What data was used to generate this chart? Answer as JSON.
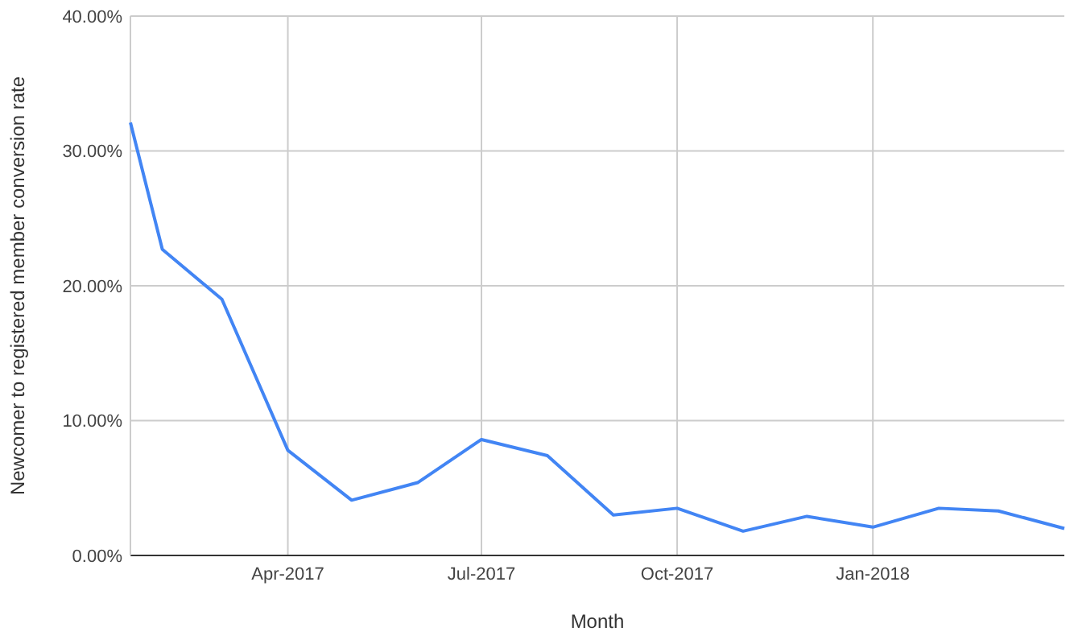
{
  "chart_data": {
    "type": "line",
    "xlabel": "Month",
    "ylabel": "Newcomer to registered member conversion rate",
    "x": [
      "2017-01-17",
      "2017-02-01",
      "2017-03-01",
      "2017-04-01",
      "2017-05-01",
      "2017-06-01",
      "2017-07-01",
      "2017-08-01",
      "2017-09-01",
      "2017-10-01",
      "2017-11-01",
      "2017-12-01",
      "2018-01-01",
      "2018-02-01",
      "2018-03-01",
      "2018-04-01"
    ],
    "series": [
      {
        "color": "#4285f4",
        "values": [
          32.1,
          22.7,
          19.0,
          7.8,
          4.1,
          5.4,
          8.6,
          7.4,
          3.0,
          3.5,
          1.8,
          2.9,
          2.1,
          3.5,
          3.3,
          2.0
        ]
      }
    ],
    "xlim": [
      "2017-01-17",
      "2018-04-01"
    ],
    "xticks": [
      {
        "value": "2017-04-01",
        "label": "Apr-2017"
      },
      {
        "value": "2017-07-01",
        "label": "Jul-2017"
      },
      {
        "value": "2017-10-01",
        "label": "Oct-2017"
      },
      {
        "value": "2018-01-01",
        "label": "Jan-2018"
      }
    ],
    "ylim": [
      0,
      40
    ],
    "yticks": [
      {
        "value": 0,
        "label": "0.00%"
      },
      {
        "value": 10,
        "label": "10.00%"
      },
      {
        "value": 20,
        "label": "20.00%"
      },
      {
        "value": 30,
        "label": "30.00%"
      },
      {
        "value": 40,
        "label": "40.00%"
      }
    ],
    "grid": true,
    "marker": "none",
    "line_style": "solid"
  }
}
